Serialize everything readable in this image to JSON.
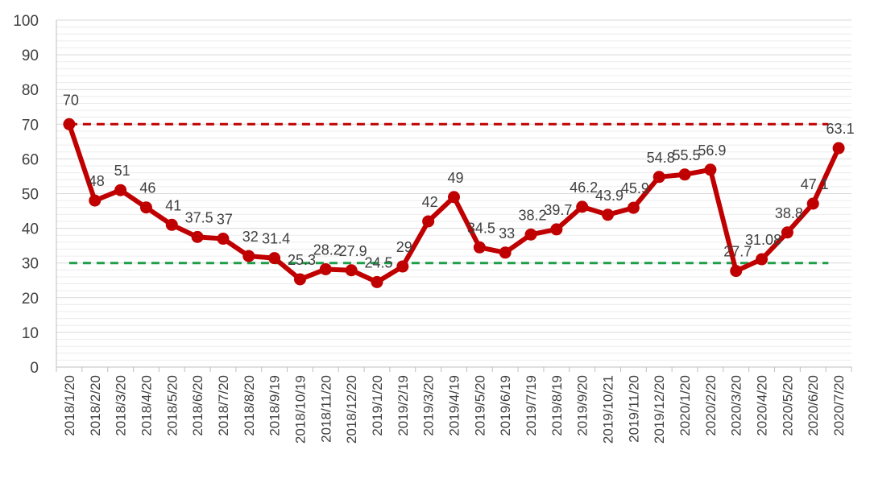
{
  "chart_data": {
    "type": "line",
    "categories": [
      "2018/1/20",
      "2018/2/20",
      "2018/3/20",
      "2018/4/20",
      "2018/5/20",
      "2018/6/20",
      "2018/7/20",
      "2018/8/20",
      "2018/9/19",
      "2018/10/19",
      "2018/11/20",
      "2018/12/20",
      "2019/1/20",
      "2019/2/19",
      "2019/3/20",
      "2019/4/19",
      "2019/5/20",
      "2019/6/19",
      "2019/7/19",
      "2019/8/19",
      "2019/9/20",
      "2019/10/21",
      "2019/11/20",
      "2019/12/20",
      "2020/1/20",
      "2020/2/20",
      "2020/3/20",
      "2020/4/20",
      "2020/5/20",
      "2020/6/20",
      "2020/7/20"
    ],
    "series": [
      {
        "values": [
          70,
          48,
          51,
          46,
          41,
          37.5,
          37,
          32,
          31.4,
          25.3,
          28.2,
          27.9,
          24.5,
          29,
          42,
          49,
          34.5,
          33,
          38.2,
          39.7,
          46.2,
          43.9,
          45.9,
          54.8,
          55.5,
          56.9,
          27.7,
          31.08,
          38.8,
          47.1,
          63.1
        ],
        "labels": [
          "70",
          "48",
          "51",
          "46",
          "41",
          "37.5",
          "37",
          "32",
          "31.4",
          "25.3",
          "28.2",
          "27.9",
          "24.5",
          "29",
          "42",
          "49",
          "34.5",
          "33",
          "38.2",
          "39.7",
          "46.2",
          "43.9",
          "45.9",
          "54.8",
          "55.5",
          "56.9",
          "27.7",
          "31.08",
          "38.8",
          "47.1",
          "63.1"
        ],
        "color": "#c00000"
      }
    ],
    "reference_lines": [
      {
        "value": 70,
        "color": "#c00000",
        "style": "dashed"
      },
      {
        "value": 30,
        "color": "#1f9e4a",
        "style": "dashed"
      }
    ],
    "ylim": [
      0,
      100
    ],
    "yticks": [
      "0",
      "10",
      "20",
      "30",
      "40",
      "50",
      "60",
      "70",
      "80",
      "90",
      "100"
    ],
    "title": "",
    "xlabel": "",
    "ylabel": "",
    "grid": true,
    "legend": "none"
  }
}
